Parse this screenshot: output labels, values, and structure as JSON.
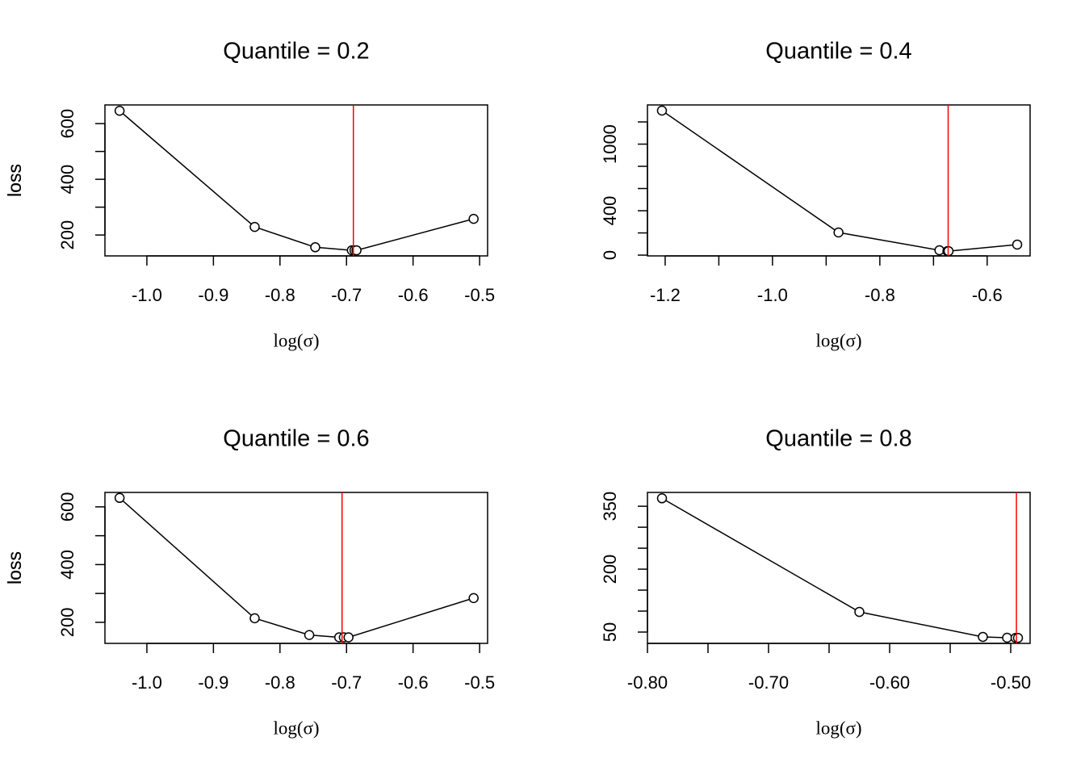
{
  "chart_data": [
    {
      "type": "line",
      "title": "Quantile = 0.2",
      "x_label": "log(σ)",
      "y_label": "loss",
      "x": [
        -1.041,
        -0.838,
        -0.747,
        -0.692,
        -0.688,
        -0.685,
        -0.509
      ],
      "series": [
        {
          "name": "loss",
          "color": "#000000",
          "values": [
            646,
            229,
            156,
            145,
            145,
            145,
            258
          ]
        }
      ],
      "xlim": [
        -1.063,
        -0.488
      ],
      "ylim": [
        125,
        667
      ],
      "xticks": [
        {
          "value": -1,
          "label": "-1.0"
        },
        -0.9,
        -0.8,
        -0.7,
        -0.6,
        -0.5
      ],
      "yticks": [
        200,
        {
          "value": 300,
          "label": null
        },
        400,
        {
          "value": 500,
          "label": null
        },
        600
      ],
      "vline": -0.6897,
      "vline_color": "#ff0000"
    },
    {
      "type": "line",
      "title": "Quantile = 0.4",
      "x_label": "log(σ)",
      "y_label": "loss",
      "x": [
        -1.206,
        -0.877,
        -0.689,
        -0.674,
        -0.672,
        -0.544
      ],
      "series": [
        {
          "name": "loss",
          "color": "#000000",
          "values": [
            1302,
            204,
            44,
            36,
            36,
            95
          ]
        }
      ],
      "xlim": [
        -1.233,
        -0.52
      ],
      "ylim": [
        -7,
        1353
      ],
      "xticks": [
        -1.2,
        {
          "value": -1.1,
          "label": null
        },
        {
          "value": -1,
          "label": "-1.0"
        },
        {
          "value": -0.9,
          "label": null
        },
        -0.8,
        {
          "value": -0.7,
          "label": null
        },
        -0.6
      ],
      "yticks": [
        0,
        {
          "value": 200,
          "label": null
        },
        400,
        {
          "value": 600,
          "label": null
        },
        {
          "value": 800,
          "label": null
        },
        1000,
        {
          "value": 1200,
          "label": null
        }
      ],
      "vline": -0.6727,
      "vline_color": "#ff0000"
    },
    {
      "type": "line",
      "title": "Quantile = 0.6",
      "x_label": "log(σ)",
      "y_label": "loss",
      "x": [
        -1.041,
        -0.838,
        -0.756,
        -0.711,
        -0.704,
        -0.697,
        -0.509
      ],
      "series": [
        {
          "name": "loss",
          "color": "#000000",
          "values": [
            631,
            214,
            156,
            148,
            148,
            148,
            284
          ]
        }
      ],
      "xlim": [
        -1.063,
        -0.488
      ],
      "ylim": [
        127,
        650
      ],
      "xticks": [
        {
          "value": -1,
          "label": "-1.0"
        },
        -0.9,
        -0.8,
        -0.7,
        -0.6,
        -0.5
      ],
      "yticks": [
        200,
        {
          "value": 300,
          "label": null
        },
        400,
        {
          "value": 500,
          "label": null
        },
        600
      ],
      "vline": -0.7067,
      "vline_color": "#ff0000"
    },
    {
      "type": "line",
      "title": "Quantile = 0.8",
      "x_label": "log(σ)",
      "y_label": "loss",
      "x": [
        -0.788,
        -0.625,
        -0.523,
        -0.503,
        -0.496,
        -0.494
      ],
      "series": [
        {
          "name": "loss",
          "color": "#000000",
          "values": [
            369,
            98,
            38.5,
            36.5,
            36,
            36
          ]
        }
      ],
      "xlim": [
        -0.8,
        -0.484
      ],
      "ylim": [
        23,
        383
      ],
      "xticks": [
        {
          "value": -0.8,
          "label": "-0.80"
        },
        {
          "value": -0.75,
          "label": null
        },
        {
          "value": -0.7,
          "label": "-0.70"
        },
        {
          "value": -0.65,
          "label": null
        },
        {
          "value": -0.6,
          "label": "-0.60"
        },
        {
          "value": -0.55,
          "label": null
        },
        {
          "value": -0.5,
          "label": "-0.50"
        }
      ],
      "yticks": [
        50,
        {
          "value": 100,
          "label": null
        },
        {
          "value": 150,
          "label": null
        },
        200,
        {
          "value": 250,
          "label": null
        },
        {
          "value": 300,
          "label": null
        },
        350
      ],
      "vline": -0.4953,
      "vline_color": "#ff0000"
    }
  ]
}
